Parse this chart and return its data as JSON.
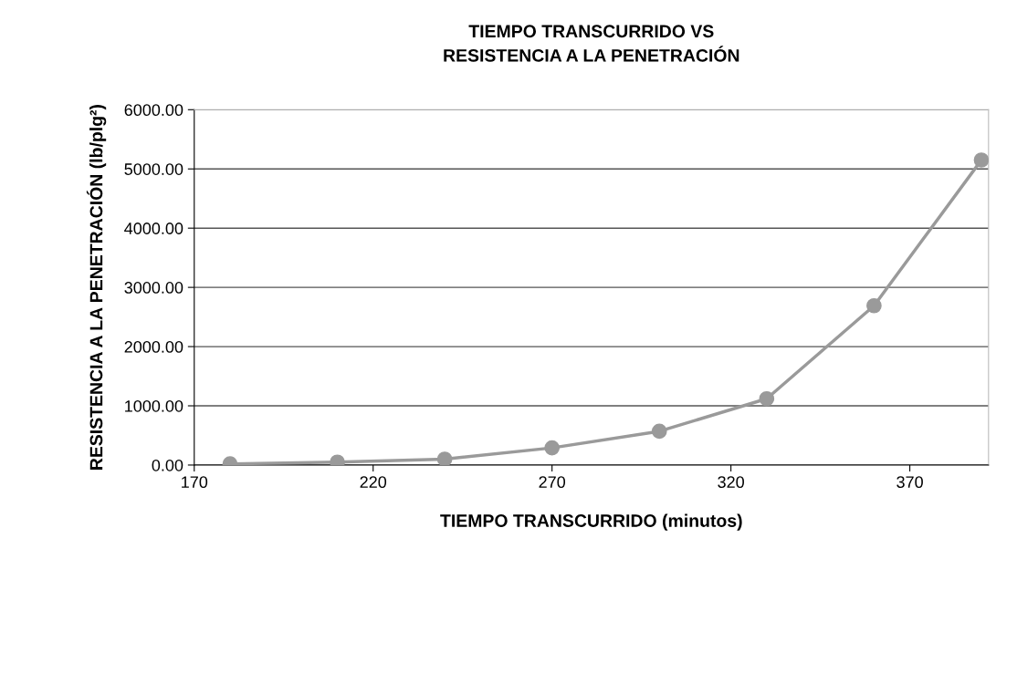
{
  "chart_data": {
    "type": "line",
    "title": "TIEMPO TRANSCURRIDO VS\nRESISTENCIA A LA PENETRACIÓN",
    "xlabel": "TIEMPO TRANSCURRIDO (minutos)",
    "ylabel": "RESISTENCIA A LA PENETRACIÓN (lb/plg²)",
    "x": [
      180,
      210,
      240,
      270,
      300,
      330,
      360,
      390
    ],
    "series": [
      {
        "color": "#9a9a9a",
        "values": [
          20,
          50,
          100,
          290,
          570,
          1120,
          2690,
          5150
        ]
      }
    ],
    "xlim": [
      170,
      392
    ],
    "xticks": [
      170,
      220,
      270,
      320,
      370
    ],
    "ylim": [
      0,
      6000
    ],
    "yticks": [
      {
        "value": 0,
        "label": "0.00"
      },
      {
        "value": 1000,
        "label": "1000.00"
      },
      {
        "value": 2000,
        "label": "2000.00"
      },
      {
        "value": 3000,
        "label": "3000.00"
      },
      {
        "value": 4000,
        "label": "4000.00"
      },
      {
        "value": 5000,
        "label": "5000.00"
      },
      {
        "value": 6000,
        "label": "6000.00"
      }
    ],
    "grid": "y",
    "marker": "circle",
    "line_style": "solid"
  }
}
